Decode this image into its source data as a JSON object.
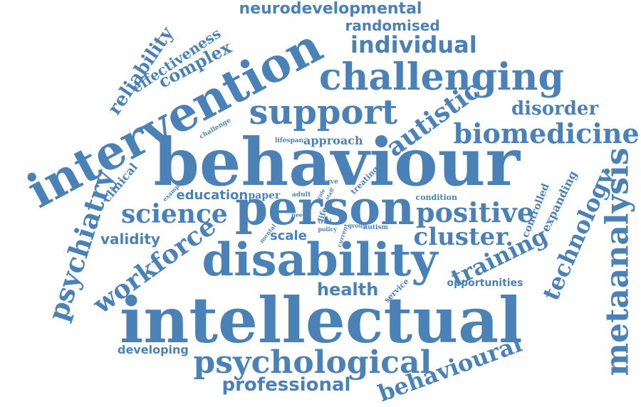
{
  "palette": {
    "word_color": "#4a82b8",
    "background": "#ffffff"
  },
  "words": [
    "neurodevelopmental",
    "randomised",
    "individual",
    "reliability",
    "effectiveness",
    "complex",
    "intervention",
    "challenging",
    "support",
    "autistic",
    "disorder",
    "biomedicine",
    "behaviour",
    "challenge",
    "lifespan",
    "approach",
    "clinical",
    "example",
    "serve",
    "treating",
    "education",
    "paper",
    "adult",
    "role",
    "staff",
    "condition",
    "science",
    "person",
    "positive",
    "need",
    "life",
    "trial",
    "group",
    "autism",
    "controlled",
    "expanding",
    "technology",
    "metaanalysis",
    "psychiatry",
    "validity",
    "workforce",
    "scale",
    "mental",
    "policy",
    "current",
    "cluster",
    "disability",
    "training",
    "opportunities",
    "health",
    "service",
    "intellectual",
    "developing",
    "psychological",
    "behavioural",
    "professional"
  ]
}
